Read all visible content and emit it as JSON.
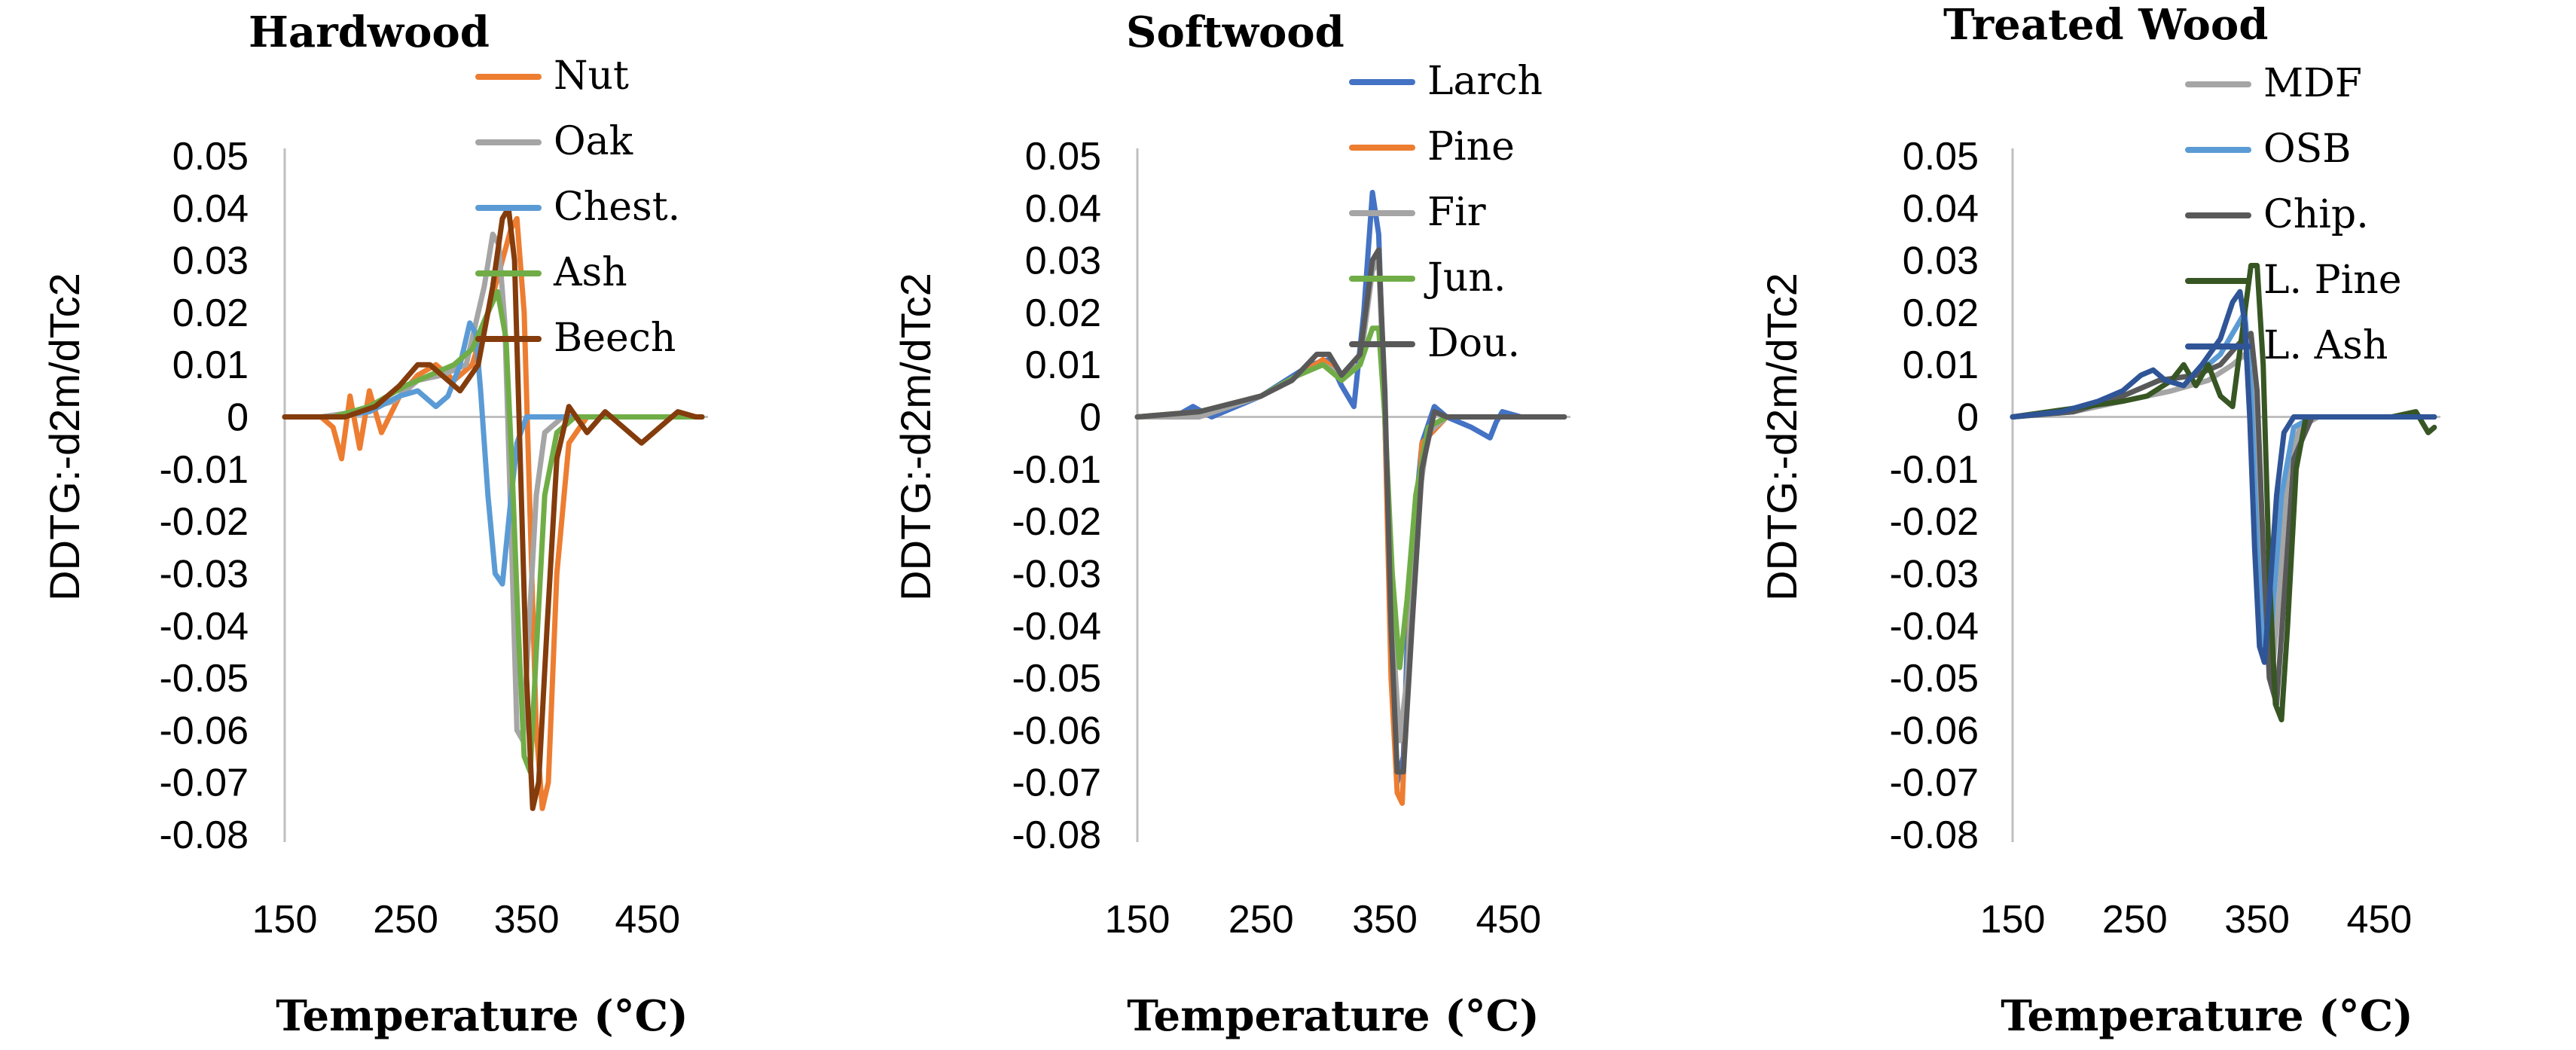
{
  "chart_data": [
    {
      "type": "line",
      "title": "Hardwood",
      "xlabel": "Temperature (°C)",
      "ylabel": "DDTG:-d2m/dTc2",
      "xlim": [
        150,
        500
      ],
      "ylim": [
        -0.08,
        0.05
      ],
      "xticks": [
        "150",
        "250",
        "350",
        "450"
      ],
      "yticks": [
        "0.05",
        "0.04",
        "0.03",
        "0.02",
        "0.01",
        "0",
        "-0.01",
        "-0.02",
        "-0.03",
        "-0.04",
        "-0.05",
        "-0.06",
        "-0.07",
        "-0.08"
      ],
      "legend_position": "top-right",
      "grid": false,
      "series": [
        {
          "name": "Nut",
          "color": "#ED7D31",
          "x": [
            150,
            180,
            190,
            197,
            204,
            212,
            220,
            230,
            245,
            260,
            275,
            290,
            305,
            318,
            330,
            337,
            342,
            348,
            353,
            358,
            363,
            368,
            375,
            385,
            400,
            420,
            440,
            460,
            480,
            495
          ],
          "y": [
            0.0,
            0.0,
            -0.002,
            -0.008,
            0.004,
            -0.006,
            0.005,
            -0.003,
            0.004,
            0.008,
            0.01,
            0.007,
            0.01,
            0.02,
            0.03,
            0.036,
            0.038,
            0.02,
            -0.02,
            -0.06,
            -0.075,
            -0.07,
            -0.03,
            -0.005,
            0.0,
            0.0,
            0.0,
            0.0,
            0.0,
            0.0
          ]
        },
        {
          "name": "Oak",
          "color": "#A5A5A5",
          "x": [
            150,
            180,
            210,
            240,
            260,
            280,
            300,
            315,
            322,
            327,
            332,
            337,
            342,
            347,
            352,
            358,
            365,
            380,
            400,
            430,
            460,
            495
          ],
          "y": [
            0.0,
            0.0,
            0.001,
            0.003,
            0.007,
            0.008,
            0.01,
            0.025,
            0.035,
            0.033,
            0.018,
            -0.02,
            -0.06,
            -0.062,
            -0.04,
            -0.015,
            -0.003,
            0.0,
            0.0,
            0.0,
            0.0,
            0.0
          ]
        },
        {
          "name": "Chest.",
          "color": "#5B9BD5",
          "x": [
            150,
            190,
            220,
            245,
            260,
            275,
            285,
            295,
            303,
            308,
            312,
            318,
            324,
            330,
            336,
            342,
            350,
            360,
            380,
            420,
            460,
            495
          ],
          "y": [
            0.0,
            0.0,
            0.001,
            0.004,
            0.005,
            0.002,
            0.004,
            0.01,
            0.018,
            0.016,
            0.005,
            -0.015,
            -0.03,
            -0.032,
            -0.018,
            -0.005,
            0.0,
            0.0,
            0.0,
            0.0,
            0.0,
            0.0
          ]
        },
        {
          "name": "Ash",
          "color": "#70AD47",
          "x": [
            150,
            190,
            220,
            250,
            270,
            290,
            305,
            318,
            326,
            333,
            338,
            343,
            348,
            353,
            358,
            365,
            375,
            390,
            420,
            460,
            495
          ],
          "y": [
            0.0,
            0.0,
            0.002,
            0.006,
            0.008,
            0.01,
            0.013,
            0.02,
            0.024,
            0.015,
            -0.01,
            -0.04,
            -0.065,
            -0.068,
            -0.045,
            -0.015,
            -0.003,
            0.0,
            0.0,
            0.0,
            0.0
          ]
        },
        {
          "name": "Beech",
          "color": "#843C0C",
          "x": [
            150,
            175,
            200,
            225,
            245,
            260,
            270,
            280,
            295,
            310,
            322,
            330,
            335,
            340,
            345,
            350,
            355,
            360,
            367,
            375,
            385,
            400,
            415,
            430,
            445,
            460,
            475,
            490,
            495
          ],
          "y": [
            0.0,
            0.0,
            0.0,
            0.002,
            0.006,
            0.01,
            0.01,
            0.008,
            0.005,
            0.01,
            0.025,
            0.038,
            0.04,
            0.03,
            -0.01,
            -0.05,
            -0.075,
            -0.07,
            -0.04,
            -0.008,
            0.002,
            -0.003,
            0.001,
            -0.002,
            -0.005,
            -0.002,
            0.001,
            0.0,
            0.0
          ]
        }
      ]
    },
    {
      "type": "line",
      "title": "Softwood",
      "xlabel": "Temperature (°C)",
      "ylabel": "DDTG:-d2m/dTc2",
      "xlim": [
        150,
        500
      ],
      "ylim": [
        -0.08,
        0.05
      ],
      "xticks": [
        "150",
        "250",
        "350",
        "450"
      ],
      "yticks": [
        "0.05",
        "0.04",
        "0.03",
        "0.02",
        "0.01",
        "0",
        "-0.01",
        "-0.02",
        "-0.03",
        "-0.04",
        "-0.05",
        "-0.06",
        "-0.07",
        "-0.08"
      ],
      "legend_position": "top-right",
      "grid": false,
      "series": [
        {
          "name": "Larch",
          "color": "#4472C4",
          "x": [
            150,
            180,
            195,
            210,
            230,
            250,
            270,
            290,
            305,
            315,
            325,
            333,
            340,
            345,
            350,
            355,
            360,
            365,
            370,
            380,
            390,
            400,
            420,
            435,
            440,
            445,
            460,
            480,
            495
          ],
          "y": [
            0.0,
            0.0,
            0.002,
            0.0,
            0.002,
            0.004,
            0.007,
            0.01,
            0.011,
            0.006,
            0.002,
            0.02,
            0.043,
            0.035,
            0.0,
            -0.045,
            -0.07,
            -0.065,
            -0.03,
            -0.005,
            0.002,
            0.0,
            -0.002,
            -0.004,
            -0.001,
            0.001,
            0.0,
            0.0,
            0.0
          ]
        },
        {
          "name": "Pine",
          "color": "#ED7D31",
          "x": [
            150,
            200,
            250,
            280,
            300,
            315,
            330,
            340,
            345,
            350,
            355,
            360,
            364,
            370,
            380,
            400,
            440,
            495
          ],
          "y": [
            0.0,
            0.001,
            0.004,
            0.008,
            0.011,
            0.008,
            0.01,
            0.03,
            0.032,
            0.0,
            -0.05,
            -0.072,
            -0.074,
            -0.04,
            -0.005,
            0.0,
            0.0,
            0.0
          ]
        },
        {
          "name": "Fir",
          "color": "#A5A5A5",
          "x": [
            150,
            200,
            250,
            280,
            300,
            315,
            330,
            340,
            345,
            350,
            356,
            362,
            368,
            375,
            385,
            400,
            440,
            495
          ],
          "y": [
            0.0,
            0.0,
            0.004,
            0.008,
            0.01,
            0.008,
            0.01,
            0.028,
            0.03,
            0.0,
            -0.04,
            -0.062,
            -0.05,
            -0.02,
            -0.003,
            0.0,
            0.0,
            0.0
          ]
        },
        {
          "name": "Jun.",
          "color": "#70AD47",
          "x": [
            150,
            200,
            250,
            280,
            300,
            315,
            330,
            340,
            345,
            350,
            356,
            362,
            368,
            375,
            385,
            400,
            440,
            495
          ],
          "y": [
            0.0,
            0.001,
            0.004,
            0.008,
            0.01,
            0.007,
            0.01,
            0.017,
            0.017,
            0.0,
            -0.03,
            -0.048,
            -0.035,
            -0.015,
            -0.002,
            0.0,
            0.0,
            0.0
          ]
        },
        {
          "name": "Dou.",
          "color": "#595959",
          "x": [
            150,
            200,
            250,
            275,
            295,
            305,
            315,
            330,
            340,
            345,
            350,
            355,
            360,
            365,
            372,
            380,
            390,
            400,
            440,
            495
          ],
          "y": [
            0.0,
            0.001,
            0.004,
            0.007,
            0.012,
            0.012,
            0.008,
            0.012,
            0.03,
            0.032,
            0.005,
            -0.04,
            -0.068,
            -0.068,
            -0.04,
            -0.01,
            0.001,
            0.0,
            0.0,
            0.0
          ]
        }
      ]
    },
    {
      "type": "line",
      "title": "Treated Wood",
      "xlabel": "Temperature (°C)",
      "ylabel": "DDTG:-d2m/dTc2",
      "xlim": [
        150,
        500
      ],
      "ylim": [
        -0.08,
        0.05
      ],
      "xticks": [
        "150",
        "250",
        "350",
        "450"
      ],
      "yticks": [
        "0.05",
        "0.04",
        "0.03",
        "0.02",
        "0.01",
        "0",
        "-0.01",
        "-0.02",
        "-0.03",
        "-0.04",
        "-0.05",
        "-0.06",
        "-0.07",
        "-0.08"
      ],
      "legend_position": "top-right",
      "grid": false,
      "series": [
        {
          "name": "MDF",
          "color": "#A5A5A5",
          "x": [
            150,
            200,
            240,
            280,
            310,
            330,
            340,
            345,
            350,
            356,
            362,
            368,
            375,
            385,
            400,
            440,
            495
          ],
          "y": [
            0.0,
            0.001,
            0.003,
            0.005,
            0.007,
            0.01,
            0.012,
            0.008,
            -0.01,
            -0.04,
            -0.05,
            -0.035,
            -0.01,
            -0.002,
            0.0,
            0.0,
            0.0
          ]
        },
        {
          "name": "OSB",
          "color": "#5B9BD5",
          "x": [
            150,
            200,
            240,
            270,
            300,
            320,
            335,
            340,
            345,
            350,
            356,
            362,
            370,
            380,
            395,
            440,
            495
          ],
          "y": [
            0.0,
            0.001,
            0.004,
            0.007,
            0.008,
            0.012,
            0.018,
            0.02,
            0.005,
            -0.025,
            -0.044,
            -0.04,
            -0.015,
            -0.002,
            0.0,
            0.0,
            0.0
          ]
        },
        {
          "name": "Chip.",
          "color": "#595959",
          "x": [
            150,
            200,
            240,
            270,
            300,
            320,
            335,
            345,
            350,
            355,
            360,
            366,
            372,
            380,
            395,
            440,
            495
          ],
          "y": [
            0.0,
            0.001,
            0.004,
            0.007,
            0.008,
            0.01,
            0.014,
            0.016,
            0.005,
            -0.025,
            -0.05,
            -0.055,
            -0.035,
            -0.008,
            0.0,
            0.0,
            0.0
          ]
        },
        {
          "name": "L. Pine",
          "color": "#375623",
          "x": [
            150,
            180,
            210,
            240,
            260,
            280,
            290,
            300,
            310,
            320,
            330,
            340,
            345,
            350,
            355,
            360,
            365,
            370,
            375,
            382,
            390,
            400,
            430,
            460,
            480,
            490,
            495
          ],
          "y": [
            0.0,
            0.001,
            0.002,
            0.003,
            0.004,
            0.007,
            0.01,
            0.006,
            0.01,
            0.004,
            0.002,
            0.02,
            0.029,
            0.029,
            0.01,
            -0.03,
            -0.055,
            -0.058,
            -0.04,
            -0.01,
            0.0,
            0.0,
            0.0,
            0.0,
            0.001,
            -0.003,
            -0.002
          ]
        },
        {
          "name": "L. Ash",
          "color": "#2F5597",
          "x": [
            150,
            190,
            220,
            240,
            255,
            265,
            275,
            290,
            305,
            320,
            330,
            336,
            340,
            344,
            348,
            352,
            356,
            360,
            366,
            372,
            380,
            395,
            440,
            495
          ],
          "y": [
            0.0,
            0.001,
            0.003,
            0.005,
            0.008,
            0.009,
            0.007,
            0.006,
            0.01,
            0.015,
            0.022,
            0.024,
            0.018,
            0.0,
            -0.025,
            -0.044,
            -0.047,
            -0.035,
            -0.015,
            -0.003,
            0.0,
            0.0,
            0.0,
            0.0
          ]
        }
      ]
    }
  ]
}
